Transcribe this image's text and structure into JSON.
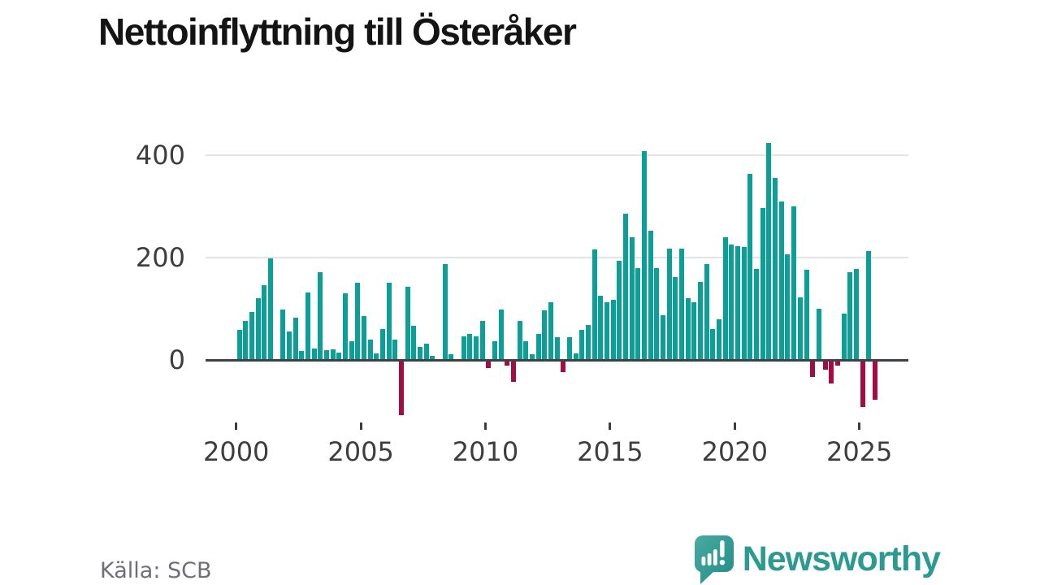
{
  "title": "Nettoinflyttning till Österåker",
  "footer": {
    "source": "Källa: SCB"
  },
  "brand": {
    "name": "Newsworthy",
    "icon": "newsworthy-speech-bubble-chart-icon",
    "color": "#2d9a92"
  },
  "colors": {
    "positive_bar": "#0b9f97",
    "negative_bar": "#a30c45",
    "axis_line": "#3d4247",
    "gridline": "#e4e4e4",
    "tick_text": "#3d3d3d",
    "muted_text": "#6f6f78",
    "title_text": "#141414"
  },
  "chart_data": {
    "type": "bar",
    "title": "Nettoinflyttning till Österåker",
    "xlabel": "",
    "ylabel": "",
    "y_ticks": [
      0,
      200,
      400
    ],
    "x_ticks": [
      "2000",
      "2005",
      "2010",
      "2015",
      "2020",
      "2025"
    ],
    "ylim": [
      -120,
      440
    ],
    "grid": "horizontal",
    "legend": "none",
    "frequency": "quarterly",
    "period_start": "2000-Q1",
    "period_end": "2025-Q3",
    "years": [
      {
        "year": 2000,
        "values": [
          58,
          76,
          93,
          120
        ]
      },
      {
        "year": 2001,
        "values": [
          146,
          198,
          2,
          99
        ]
      },
      {
        "year": 2002,
        "values": [
          56,
          82,
          18,
          131
        ]
      },
      {
        "year": 2003,
        "values": [
          23,
          172,
          19,
          21
        ]
      },
      {
        "year": 2004,
        "values": [
          14,
          130,
          36,
          150
        ]
      },
      {
        "year": 2005,
        "values": [
          85,
          39,
          13,
          61
        ]
      },
      {
        "year": 2006,
        "values": [
          150,
          39,
          -107,
          143
        ]
      },
      {
        "year": 2007,
        "values": [
          66,
          26,
          31,
          8
        ]
      },
      {
        "year": 2008,
        "values": [
          2,
          188,
          11,
          2
        ]
      },
      {
        "year": 2009,
        "values": [
          46,
          50,
          46,
          76
        ]
      },
      {
        "year": 2010,
        "values": [
          -15,
          37,
          98,
          -10
        ]
      },
      {
        "year": 2011,
        "values": [
          -42,
          76,
          36,
          11
        ]
      },
      {
        "year": 2012,
        "values": [
          51,
          97,
          112,
          45
        ]
      },
      {
        "year": 2013,
        "values": [
          -22,
          45,
          12,
          59
        ]
      },
      {
        "year": 2014,
        "values": [
          68,
          215,
          126,
          112
        ]
      },
      {
        "year": 2015,
        "values": [
          117,
          194,
          286,
          240
        ]
      },
      {
        "year": 2016,
        "values": [
          180,
          408,
          252,
          180
        ]
      },
      {
        "year": 2017,
        "values": [
          88,
          218,
          162,
          217
        ]
      },
      {
        "year": 2018,
        "values": [
          120,
          112,
          152,
          188
        ]
      },
      {
        "year": 2019,
        "values": [
          61,
          80,
          239,
          225
        ]
      },
      {
        "year": 2020,
        "values": [
          222,
          220,
          363,
          178
        ]
      },
      {
        "year": 2021,
        "values": [
          297,
          424,
          355,
          310
        ]
      },
      {
        "year": 2022,
        "values": [
          206,
          300,
          122,
          176
        ]
      },
      {
        "year": 2023,
        "values": [
          -32,
          100,
          -18,
          -45
        ]
      },
      {
        "year": 2024,
        "values": [
          -10,
          90,
          172,
          178
        ]
      },
      {
        "year": 2025,
        "values": [
          -90,
          212,
          -76
        ]
      }
    ]
  }
}
